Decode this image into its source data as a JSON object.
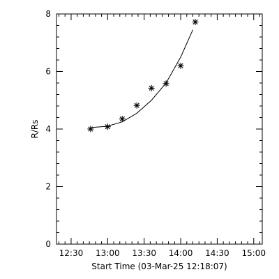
{
  "chart_data": {
    "type": "scatter",
    "xlabel": "Start Time (03-Mar-25 12:18:07)",
    "ylabel": "R/Rs",
    "x_ticks": [
      "12:30",
      "13:00",
      "13:30",
      "14:00",
      "14:30",
      "15:00"
    ],
    "y_ticks": [
      "0",
      "2",
      "4",
      "6",
      "8"
    ],
    "xlim": [
      "12:18",
      "15:07"
    ],
    "ylim": [
      0,
      8
    ],
    "marker": "asterisk",
    "points": [
      {
        "x": "12:46",
        "y": 4.0
      },
      {
        "x": "13:00",
        "y": 4.08
      },
      {
        "x": "13:12",
        "y": 4.35
      },
      {
        "x": "13:24",
        "y": 4.82
      },
      {
        "x": "13:36",
        "y": 5.42
      },
      {
        "x": "13:48",
        "y": 5.58
      },
      {
        "x": "14:00",
        "y": 6.2
      },
      {
        "x": "14:12",
        "y": 7.72
      }
    ],
    "fit_curve": {
      "type": "quadratic",
      "x": [
        "12:46",
        "13:00",
        "13:12",
        "13:24",
        "13:36",
        "13:48",
        "14:00",
        "14:10"
      ],
      "y": [
        4.05,
        4.1,
        4.25,
        4.55,
        5.0,
        5.6,
        6.5,
        7.45
      ]
    },
    "grid": false
  }
}
